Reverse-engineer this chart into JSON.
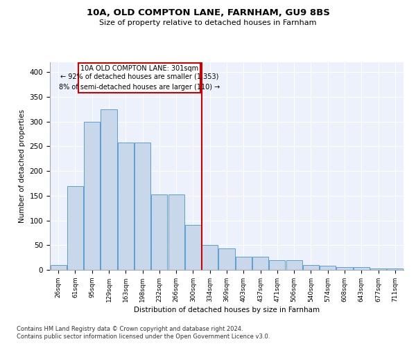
{
  "title": "10A, OLD COMPTON LANE, FARNHAM, GU9 8BS",
  "subtitle": "Size of property relative to detached houses in Farnham",
  "xlabel": "Distribution of detached houses by size in Farnham",
  "ylabel": "Number of detached properties",
  "footnote1": "Contains HM Land Registry data © Crown copyright and database right 2024.",
  "footnote2": "Contains public sector information licensed under the Open Government Licence v3.0.",
  "annotation_line1": "10A OLD COMPTON LANE: 301sqm",
  "annotation_line2": "← 92% of detached houses are smaller (1,353)",
  "annotation_line3": "8% of semi-detached houses are larger (110) →",
  "bar_color": "#c8d8ea",
  "bar_edge_color": "#5a9fd4",
  "vline_color": "#cc0000",
  "background_color": "#edf1fb",
  "categories": [
    "26sqm",
    "61sqm",
    "95sqm",
    "129sqm",
    "163sqm",
    "198sqm",
    "232sqm",
    "266sqm",
    "300sqm",
    "334sqm",
    "369sqm",
    "403sqm",
    "437sqm",
    "471sqm",
    "506sqm",
    "540sqm",
    "574sqm",
    "608sqm",
    "643sqm",
    "677sqm",
    "711sqm"
  ],
  "values": [
    10,
    170,
    300,
    325,
    258,
    258,
    153,
    153,
    91,
    50,
    43,
    27,
    27,
    20,
    20,
    10,
    8,
    5,
    5,
    3,
    3
  ],
  "ylim": [
    0,
    420
  ],
  "yticks": [
    0,
    50,
    100,
    150,
    200,
    250,
    300,
    350,
    400
  ],
  "vline_index": 8.5
}
